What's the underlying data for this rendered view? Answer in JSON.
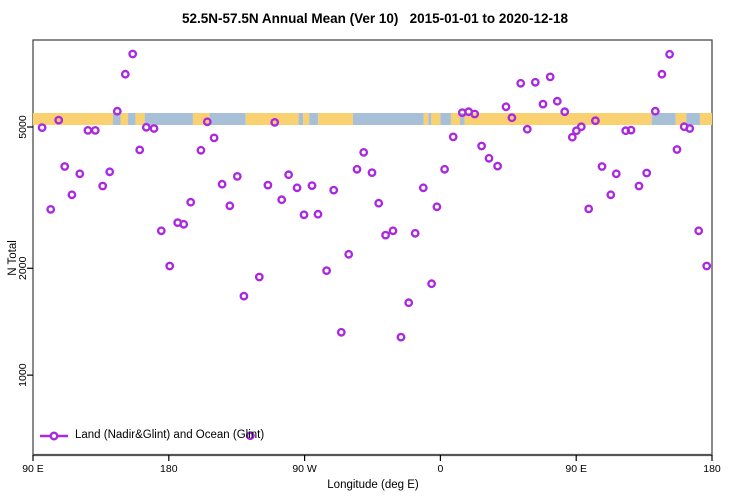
{
  "title": "52.5N-57.5N Annual Mean (Ver 10)   2015-01-01 to 2020-12-18",
  "axes": {
    "y_label": "N Total",
    "x_label": "Longitude (deg E)",
    "y_ticks": [
      {
        "value": 5000,
        "label": "5000"
      },
      {
        "value": 2000,
        "label": "2000"
      },
      {
        "value": 1000,
        "label": "1000"
      }
    ],
    "x_ticks": [
      {
        "deg": 90,
        "label": "90 E"
      },
      {
        "deg": 180,
        "label": "180"
      },
      {
        "deg": 270,
        "label": "90 W"
      },
      {
        "deg": 360,
        "label": "0"
      },
      {
        "deg": 450,
        "label": "90 E"
      },
      {
        "deg": 540,
        "label": "180"
      }
    ]
  },
  "legend": {
    "label": "Land (Nadir&Glint) and Ocean (Glint)"
  },
  "colors": {
    "point": "#A928E0",
    "land_band": "#FAD171",
    "ocean_band": "#A8BFD8",
    "axis": "#3c3c3c",
    "baseline": "#555555"
  },
  "chart_data": {
    "type": "scatter",
    "title": "52.5N-57.5N Annual Mean (Ver 10)   2015-01-01 to 2020-12-18",
    "xlabel": "Longitude (deg E)",
    "ylabel": "N Total",
    "x_axis": {
      "min": 90,
      "max": 540,
      "note": "longitude axis unwrapped: 90E -> 180 -> 90W -> 0 -> 90E -> 180"
    },
    "y_axis": {
      "scale": "log",
      "min": 600,
      "max": 8800,
      "ticks": [
        1000,
        2000,
        5000
      ]
    },
    "legend_entry": "Land (Nadir&Glint) and Ocean (Glint)",
    "points": [
      [
        156.1,
        8030
      ],
      [
        151.2,
        7040
      ],
      [
        145.9,
        5540
      ],
      [
        107.0,
        5230
      ],
      [
        96.0,
        4980
      ],
      [
        126.4,
        4890
      ],
      [
        131.3,
        4890
      ],
      [
        165.1,
        4990
      ],
      [
        170.2,
        4950
      ],
      [
        160.7,
        4310
      ],
      [
        201.3,
        4300
      ],
      [
        111.0,
        3870
      ],
      [
        121.0,
        3690
      ],
      [
        140.8,
        3740
      ],
      [
        136.2,
        3410
      ],
      [
        115.8,
        3220
      ],
      [
        101.7,
        2930
      ],
      [
        194.5,
        3070
      ],
      [
        185.9,
        2690
      ],
      [
        189.9,
        2660
      ],
      [
        175.0,
        2550
      ],
      [
        205.5,
        5170
      ],
      [
        250.2,
        5150
      ],
      [
        210.0,
        4660
      ],
      [
        309.2,
        4240
      ],
      [
        304.7,
        3800
      ],
      [
        314.7,
        3720
      ],
      [
        225.4,
        3630
      ],
      [
        215.3,
        3450
      ],
      [
        259.4,
        3670
      ],
      [
        245.7,
        3430
      ],
      [
        265.0,
        3370
      ],
      [
        274.9,
        3420
      ],
      [
        289.3,
        3320
      ],
      [
        254.8,
        3120
      ],
      [
        220.4,
        3000
      ],
      [
        269.6,
        2830
      ],
      [
        278.9,
        2840
      ],
      [
        299.2,
        2190
      ],
      [
        413.2,
        6640
      ],
      [
        422.9,
        6680
      ],
      [
        428.0,
        5800
      ],
      [
        403.5,
        5700
      ],
      [
        407.4,
        5310
      ],
      [
        374.5,
        5490
      ],
      [
        378.7,
        5520
      ],
      [
        382.7,
        5440
      ],
      [
        417.6,
        4930
      ],
      [
        368.5,
        4690
      ],
      [
        387.3,
        4420
      ],
      [
        392.2,
        4080
      ],
      [
        397.9,
        3880
      ],
      [
        362.8,
        3800
      ],
      [
        348.7,
        3370
      ],
      [
        319.1,
        3050
      ],
      [
        357.7,
        2980
      ],
      [
        328.6,
        2550
      ],
      [
        323.7,
        2480
      ],
      [
        343.3,
        2510
      ],
      [
        511.9,
        8010
      ],
      [
        506.8,
        7040
      ],
      [
        432.8,
        6920
      ],
      [
        437.5,
        5910
      ],
      [
        442.4,
        5520
      ],
      [
        502.4,
        5540
      ],
      [
        462.7,
        5210
      ],
      [
        453.4,
        5010
      ],
      [
        450.1,
        4880
      ],
      [
        482.8,
        4880
      ],
      [
        486.3,
        4900
      ],
      [
        521.6,
        5010
      ],
      [
        525.2,
        4950
      ],
      [
        447.4,
        4680
      ],
      [
        516.8,
        4320
      ],
      [
        467.1,
        3870
      ],
      [
        476.6,
        3690
      ],
      [
        496.7,
        3710
      ],
      [
        491.6,
        3410
      ],
      [
        472.9,
        3220
      ],
      [
        458.3,
        2940
      ],
      [
        531.2,
        2550
      ],
      [
        180.6,
        2030
      ],
      [
        284.6,
        1970
      ],
      [
        240.0,
        1890
      ],
      [
        229.8,
        1670
      ],
      [
        294.3,
        1320
      ],
      [
        234.0,
        675
      ],
      [
        354.2,
        1810
      ],
      [
        339.0,
        1600
      ],
      [
        333.9,
        1280
      ],
      [
        536.5,
        2030
      ]
    ],
    "band": {
      "meaning": "land/ocean strip drawn just above the 5000 gridline (approx N Total 5100-5500)",
      "segments": [
        {
          "from": 90,
          "to": 143,
          "type": "land"
        },
        {
          "from": 143,
          "to": 148,
          "type": "ocean"
        },
        {
          "from": 148,
          "to": 153,
          "type": "land"
        },
        {
          "from": 153,
          "to": 158,
          "type": "ocean"
        },
        {
          "from": 158,
          "to": 164,
          "type": "land"
        },
        {
          "from": 164,
          "to": 196,
          "type": "ocean"
        },
        {
          "from": 196,
          "to": 207,
          "type": "land"
        },
        {
          "from": 207,
          "to": 231,
          "type": "ocean"
        },
        {
          "from": 231,
          "to": 266,
          "type": "land"
        },
        {
          "from": 266,
          "to": 269,
          "type": "ocean"
        },
        {
          "from": 269,
          "to": 273,
          "type": "land"
        },
        {
          "from": 273,
          "to": 279,
          "type": "ocean"
        },
        {
          "from": 279,
          "to": 302,
          "type": "land"
        },
        {
          "from": 302,
          "to": 349,
          "type": "ocean"
        },
        {
          "from": 349,
          "to": 352,
          "type": "land"
        },
        {
          "from": 352,
          "to": 354,
          "type": "ocean"
        },
        {
          "from": 354,
          "to": 360,
          "type": "land"
        },
        {
          "from": 360,
          "to": 367,
          "type": "ocean"
        },
        {
          "from": 367,
          "to": 373,
          "type": "land"
        },
        {
          "from": 373,
          "to": 376,
          "type": "ocean"
        },
        {
          "from": 376,
          "to": 500,
          "type": "land"
        },
        {
          "from": 500,
          "to": 516,
          "type": "ocean"
        },
        {
          "from": 516,
          "to": 523,
          "type": "land"
        },
        {
          "from": 523,
          "to": 532,
          "type": "ocean"
        },
        {
          "from": 532,
          "to": 540,
          "type": "land"
        }
      ]
    }
  }
}
